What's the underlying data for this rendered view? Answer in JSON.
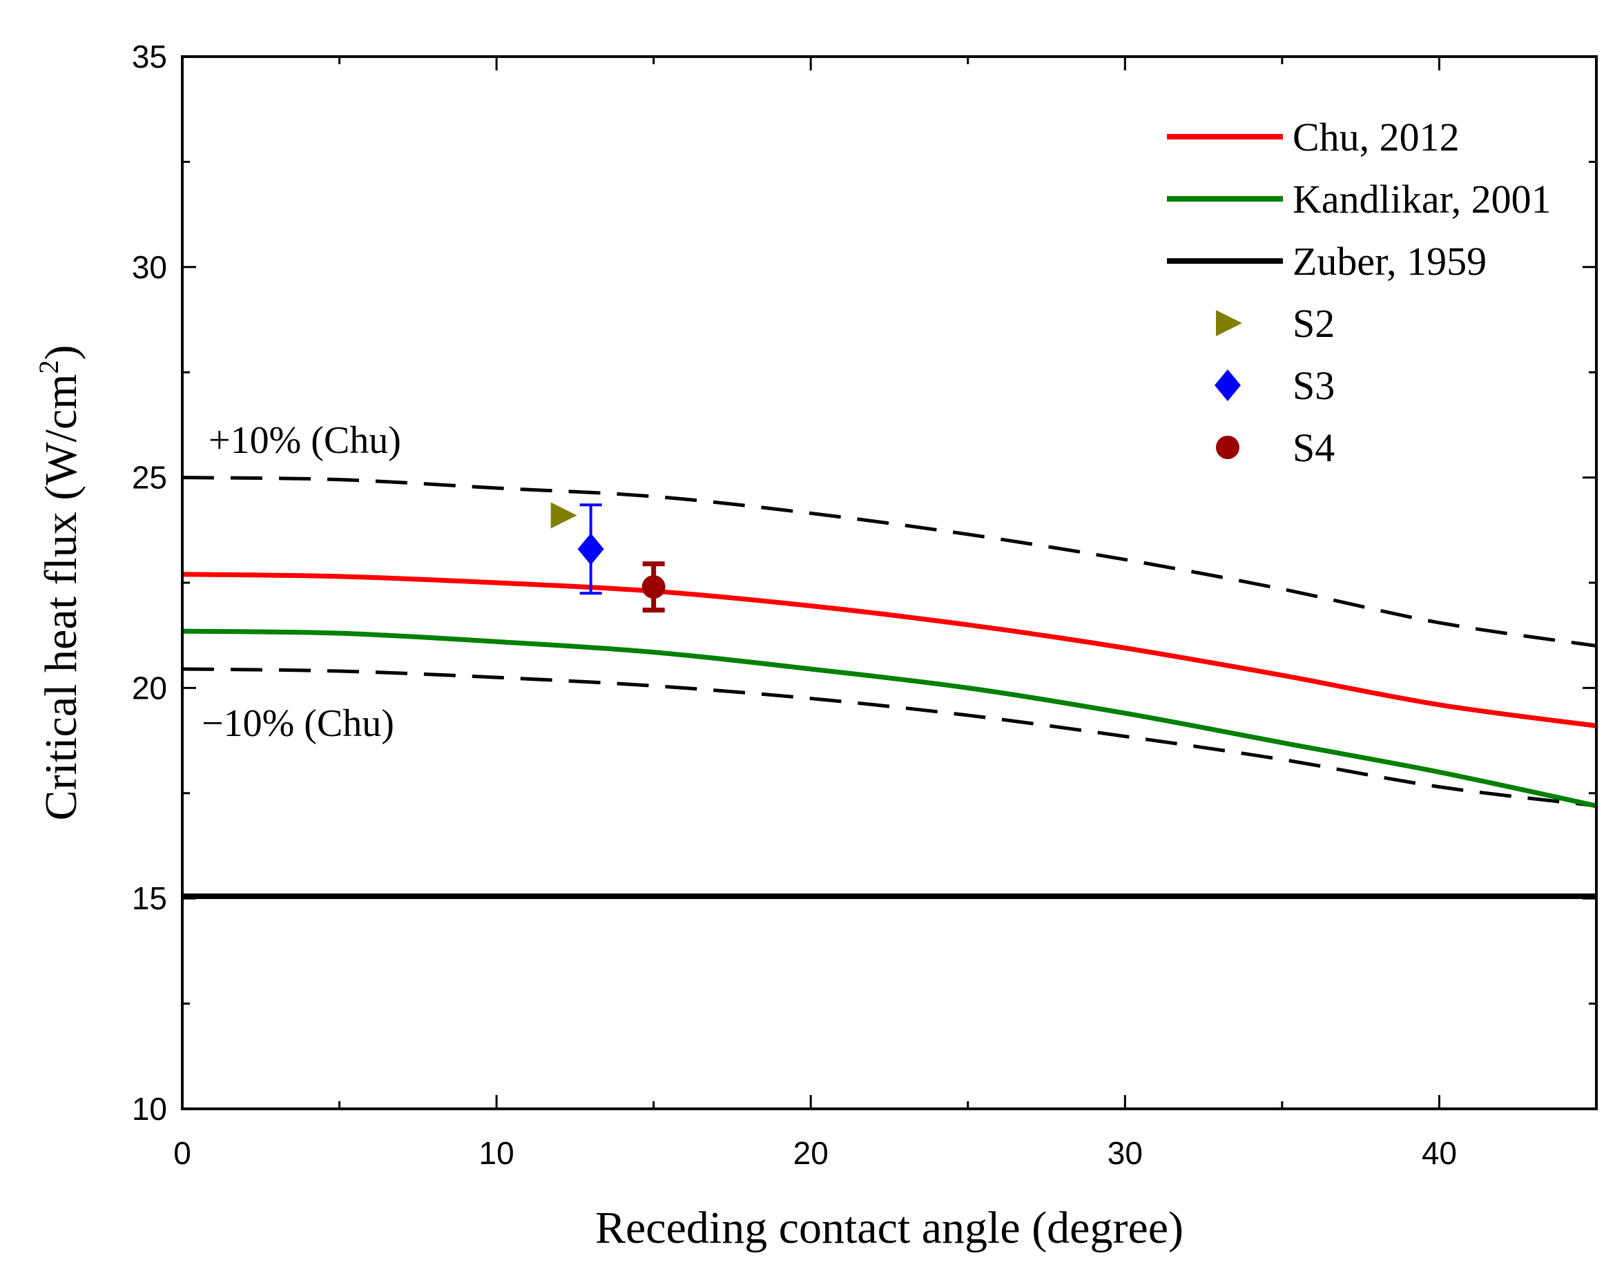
{
  "chart_data": {
    "type": "line",
    "xlabel": "Receding contact angle (degree)",
    "ylabel": "Critical heat flux (W/cm",
    "ylabel_sup": "2",
    "ylabel_close": ")",
    "xlim": [
      0,
      45
    ],
    "ylim": [
      10,
      35
    ],
    "xticks": [
      0,
      10,
      20,
      30,
      40
    ],
    "yticks": [
      10,
      15,
      20,
      25,
      30,
      35
    ],
    "x_minor_step": 5,
    "y_minor_step": 2.5,
    "grid": false,
    "legend_position": "top-right",
    "series": [
      {
        "name": "Chu, 2012",
        "kind": "line",
        "color": "#ff0000",
        "x": [
          0,
          5,
          10,
          15,
          20,
          25,
          30,
          35,
          40,
          45
        ],
        "y": [
          22.7,
          22.65,
          22.5,
          22.3,
          21.95,
          21.5,
          20.95,
          20.3,
          19.6,
          19.1
        ]
      },
      {
        "name": "Kandlikar, 2001",
        "kind": "line",
        "color": "#008000",
        "x": [
          0,
          5,
          10,
          15,
          20,
          25,
          30,
          35,
          40,
          45
        ],
        "y": [
          21.35,
          21.3,
          21.1,
          20.85,
          20.45,
          20.0,
          19.4,
          18.7,
          18.0,
          17.2
        ]
      },
      {
        "name": "Zuber, 1959",
        "kind": "line",
        "color": "#000000",
        "x": [
          0,
          45
        ],
        "y": [
          15.05,
          15.05
        ]
      },
      {
        "name": "S2",
        "kind": "marker",
        "marker": "triangle-right",
        "color": "#808000",
        "x": [
          12.1
        ],
        "y": [
          24.1
        ]
      },
      {
        "name": "S3",
        "kind": "marker",
        "marker": "diamond",
        "color": "#0000ff",
        "x": [
          13.0
        ],
        "y": [
          23.3
        ],
        "err": [
          1.05
        ]
      },
      {
        "name": "S4",
        "kind": "marker",
        "marker": "circle",
        "color": "#990000",
        "x": [
          15.0
        ],
        "y": [
          22.4
        ],
        "err": [
          0.55
        ]
      }
    ],
    "bounds": [
      {
        "label": "+10% (Chu)",
        "color": "#000000",
        "x": [
          0,
          5,
          10,
          15,
          20,
          25,
          30,
          35,
          40,
          45
        ],
        "y": [
          25.0,
          24.95,
          24.75,
          24.55,
          24.15,
          23.65,
          23.05,
          22.35,
          21.55,
          21.0
        ]
      },
      {
        "label": "−10% (Chu)",
        "color": "#000000",
        "x": [
          0,
          5,
          10,
          15,
          20,
          25,
          30,
          35,
          40,
          45
        ],
        "y": [
          20.45,
          20.4,
          20.25,
          20.05,
          19.75,
          19.35,
          18.85,
          18.3,
          17.65,
          17.2
        ]
      }
    ]
  }
}
